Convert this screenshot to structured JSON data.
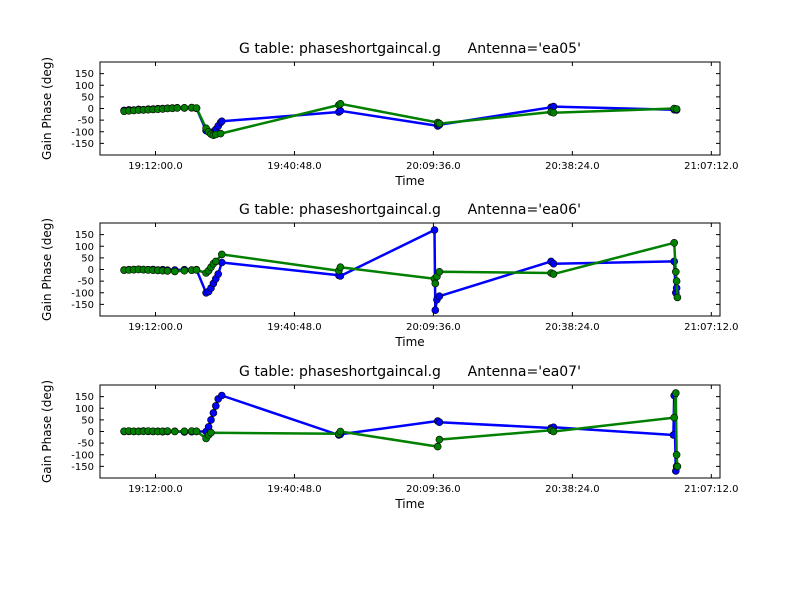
{
  "chart_data": [
    {
      "type": "line",
      "title": "G table: phaseshortgaincal.g      Antenna='ea05'",
      "xlabel": "Time",
      "ylabel": "Gain Phase (deg)",
      "ylim": [
        -200,
        200
      ],
      "xlim": [
        "19:00:30",
        "21:09:00"
      ],
      "yticks": [
        -150,
        -100,
        -50,
        0,
        50,
        100,
        150
      ],
      "xticks": [
        "19:12:00.0",
        "19:40:48.0",
        "20:09:36.0",
        "20:38:24.0",
        "21:07:12.0"
      ],
      "grid": false,
      "series": [
        {
          "color": "#0000ff",
          "points": [
            [
              "19:05:30",
              -8
            ],
            [
              "19:06:30",
              -6
            ],
            [
              "19:07:30",
              -7
            ],
            [
              "19:08:30",
              -4
            ],
            [
              "19:09:30",
              -5
            ],
            [
              "19:10:30",
              -3
            ],
            [
              "19:11:30",
              -2
            ],
            [
              "19:12:30",
              -1
            ],
            [
              "19:13:30",
              0
            ],
            [
              "19:14:30",
              1
            ],
            [
              "19:15:30",
              2
            ],
            [
              "19:16:30",
              3
            ],
            [
              "19:18:00",
              2
            ],
            [
              "19:19:30",
              3
            ],
            [
              "19:20:30",
              1
            ],
            [
              "19:22:30",
              -95
            ],
            [
              "19:23:00",
              -100
            ],
            [
              "19:23:30",
              -105
            ],
            [
              "19:24:00",
              -100
            ],
            [
              "19:24:30",
              -90
            ],
            [
              "19:25:00",
              -75
            ],
            [
              "19:25:30",
              -60
            ],
            [
              "19:25:45",
              -55
            ],
            [
              "19:50:00",
              -15
            ],
            [
              "19:50:20",
              -10
            ],
            [
              "20:10:30",
              -75
            ],
            [
              "20:10:50",
              -70
            ],
            [
              "20:34:00",
              5
            ],
            [
              "20:34:30",
              8
            ],
            [
              "20:59:30",
              -5
            ],
            [
              "21:00:00",
              -6
            ]
          ]
        },
        {
          "color": "#008000",
          "points": [
            [
              "19:05:30",
              -12
            ],
            [
              "19:06:30",
              -10
            ],
            [
              "19:07:30",
              -8
            ],
            [
              "19:08:30",
              -7
            ],
            [
              "19:09:30",
              -6
            ],
            [
              "19:10:30",
              -5
            ],
            [
              "19:11:30",
              -4
            ],
            [
              "19:12:30",
              -3
            ],
            [
              "19:13:30",
              -2
            ],
            [
              "19:14:30",
              0
            ],
            [
              "19:15:30",
              1
            ],
            [
              "19:16:30",
              2
            ],
            [
              "19:18:00",
              3
            ],
            [
              "19:19:30",
              4
            ],
            [
              "19:20:30",
              2
            ],
            [
              "19:22:30",
              -85
            ],
            [
              "19:23:00",
              -100
            ],
            [
              "19:23:30",
              -110
            ],
            [
              "19:24:00",
              -115
            ],
            [
              "19:24:30",
              -112
            ],
            [
              "19:25:30",
              -108
            ],
            [
              "19:50:00",
              15
            ],
            [
              "19:50:20",
              20
            ],
            [
              "20:10:30",
              -60
            ],
            [
              "20:10:50",
              -65
            ],
            [
              "20:34:00",
              -15
            ],
            [
              "20:34:30",
              -18
            ],
            [
              "20:59:30",
              0
            ],
            [
              "21:00:00",
              -2
            ]
          ]
        }
      ]
    },
    {
      "type": "line",
      "title": "G table: phaseshortgaincal.g      Antenna='ea06'",
      "xlabel": "Time",
      "ylabel": "Gain Phase (deg)",
      "ylim": [
        -200,
        200
      ],
      "xlim": [
        "19:00:30",
        "21:09:00"
      ],
      "yticks": [
        -150,
        -100,
        -50,
        0,
        50,
        100,
        150
      ],
      "xticks": [
        "19:12:00.0",
        "19:40:48.0",
        "20:09:36.0",
        "20:38:24.0",
        "21:07:12.0"
      ],
      "grid": false,
      "series": [
        {
          "color": "#0000ff",
          "points": [
            [
              "19:05:30",
              -2
            ],
            [
              "19:06:30",
              -1
            ],
            [
              "19:07:30",
              0
            ],
            [
              "19:08:30",
              1
            ],
            [
              "19:09:30",
              0
            ],
            [
              "19:10:30",
              -1
            ],
            [
              "19:11:30",
              0
            ],
            [
              "19:12:30",
              -2
            ],
            [
              "19:13:30",
              -1
            ],
            [
              "19:14:30",
              -3
            ],
            [
              "19:16:00",
              -2
            ],
            [
              "19:18:00",
              -1
            ],
            [
              "19:19:30",
              -2
            ],
            [
              "19:20:30",
              -1
            ],
            [
              "19:22:30",
              -100
            ],
            [
              "19:23:00",
              -95
            ],
            [
              "19:23:30",
              -80
            ],
            [
              "19:24:00",
              -60
            ],
            [
              "19:24:30",
              -40
            ],
            [
              "19:25:00",
              -20
            ],
            [
              "19:25:45",
              30
            ],
            [
              "19:50:00",
              -25
            ],
            [
              "19:50:20",
              -28
            ],
            [
              "20:09:50",
              170
            ],
            [
              "20:10:00",
              -175
            ],
            [
              "20:10:20",
              -130
            ],
            [
              "20:10:50",
              -115
            ],
            [
              "20:34:00",
              35
            ],
            [
              "20:34:30",
              25
            ],
            [
              "20:59:30",
              35
            ],
            [
              "20:59:50",
              -100
            ],
            [
              "21:00:00",
              -80
            ]
          ]
        },
        {
          "color": "#008000",
          "points": [
            [
              "19:05:30",
              -3
            ],
            [
              "19:06:30",
              -2
            ],
            [
              "19:07:30",
              -1
            ],
            [
              "19:08:30",
              0
            ],
            [
              "19:09:30",
              -1
            ],
            [
              "19:10:30",
              -2
            ],
            [
              "19:11:30",
              -3
            ],
            [
              "19:12:30",
              -4
            ],
            [
              "19:13:30",
              -5
            ],
            [
              "19:14:30",
              -6
            ],
            [
              "19:16:00",
              -8
            ],
            [
              "19:18:00",
              -5
            ],
            [
              "19:19:30",
              -3
            ],
            [
              "19:20:30",
              -2
            ],
            [
              "19:22:30",
              -15
            ],
            [
              "19:23:00",
              -5
            ],
            [
              "19:23:30",
              10
            ],
            [
              "19:24:00",
              25
            ],
            [
              "19:24:30",
              35
            ],
            [
              "19:25:45",
              65
            ],
            [
              "19:50:00",
              -5
            ],
            [
              "19:50:20",
              10
            ],
            [
              "20:09:50",
              -40
            ],
            [
              "20:10:00",
              -60
            ],
            [
              "20:10:20",
              -30
            ],
            [
              "20:10:50",
              -10
            ],
            [
              "20:34:00",
              -15
            ],
            [
              "20:34:30",
              -20
            ],
            [
              "20:59:30",
              115
            ],
            [
              "20:59:50",
              -10
            ],
            [
              "21:00:00",
              -50
            ],
            [
              "21:00:10",
              -120
            ]
          ]
        }
      ]
    },
    {
      "type": "line",
      "title": "G table: phaseshortgaincal.g      Antenna='ea07'",
      "xlabel": "Time",
      "ylabel": "Gain Phase (deg)",
      "ylim": [
        -200,
        200
      ],
      "xlim": [
        "19:00:30",
        "21:09:00"
      ],
      "yticks": [
        -150,
        -100,
        -50,
        0,
        50,
        100,
        150
      ],
      "xticks": [
        "19:12:00.0",
        "19:40:48.0",
        "20:09:36.0",
        "20:38:24.0",
        "21:07:12.0"
      ],
      "grid": false,
      "series": [
        {
          "color": "#0000ff",
          "points": [
            [
              "19:05:30",
              0
            ],
            [
              "19:06:30",
              1
            ],
            [
              "19:07:30",
              0
            ],
            [
              "19:08:30",
              1
            ],
            [
              "19:09:30",
              2
            ],
            [
              "19:10:30",
              1
            ],
            [
              "19:11:30",
              0
            ],
            [
              "19:12:30",
              1
            ],
            [
              "19:13:30",
              -1
            ],
            [
              "19:14:30",
              0
            ],
            [
              "19:16:00",
              1
            ],
            [
              "19:18:00",
              -2
            ],
            [
              "19:19:30",
              -1
            ],
            [
              "19:20:30",
              0
            ],
            [
              "19:22:30",
              0
            ],
            [
              "19:23:00",
              20
            ],
            [
              "19:23:30",
              50
            ],
            [
              "19:24:00",
              80
            ],
            [
              "19:24:30",
              110
            ],
            [
              "19:25:00",
              140
            ],
            [
              "19:25:45",
              155
            ],
            [
              "19:50:00",
              -15
            ],
            [
              "19:50:20",
              -12
            ],
            [
              "20:10:30",
              45
            ],
            [
              "20:10:50",
              40
            ],
            [
              "20:34:00",
              15
            ],
            [
              "20:34:30",
              18
            ],
            [
              "20:59:20",
              -15
            ],
            [
              "20:59:30",
              155
            ],
            [
              "20:59:50",
              -170
            ],
            [
              "21:00:00",
              -150
            ]
          ]
        },
        {
          "color": "#008000",
          "points": [
            [
              "19:05:30",
              1
            ],
            [
              "19:06:30",
              2
            ],
            [
              "19:07:30",
              1
            ],
            [
              "19:08:30",
              0
            ],
            [
              "19:09:30",
              1
            ],
            [
              "19:10:30",
              2
            ],
            [
              "19:11:30",
              1
            ],
            [
              "19:12:30",
              0
            ],
            [
              "19:13:30",
              1
            ],
            [
              "19:14:30",
              2
            ],
            [
              "19:16:00",
              0
            ],
            [
              "19:18:00",
              1
            ],
            [
              "19:19:30",
              2
            ],
            [
              "19:20:30",
              1
            ],
            [
              "19:22:30",
              -30
            ],
            [
              "19:23:00",
              -15
            ],
            [
              "19:23:30",
              -5
            ],
            [
              "19:50:00",
              -10
            ],
            [
              "19:50:20",
              0
            ],
            [
              "20:10:30",
              -65
            ],
            [
              "20:10:50",
              -35
            ],
            [
              "20:34:00",
              5
            ],
            [
              "20:34:30",
              0
            ],
            [
              "20:59:30",
              60
            ],
            [
              "20:59:50",
              165
            ],
            [
              "21:00:00",
              -100
            ],
            [
              "21:00:10",
              -150
            ]
          ]
        }
      ]
    }
  ]
}
